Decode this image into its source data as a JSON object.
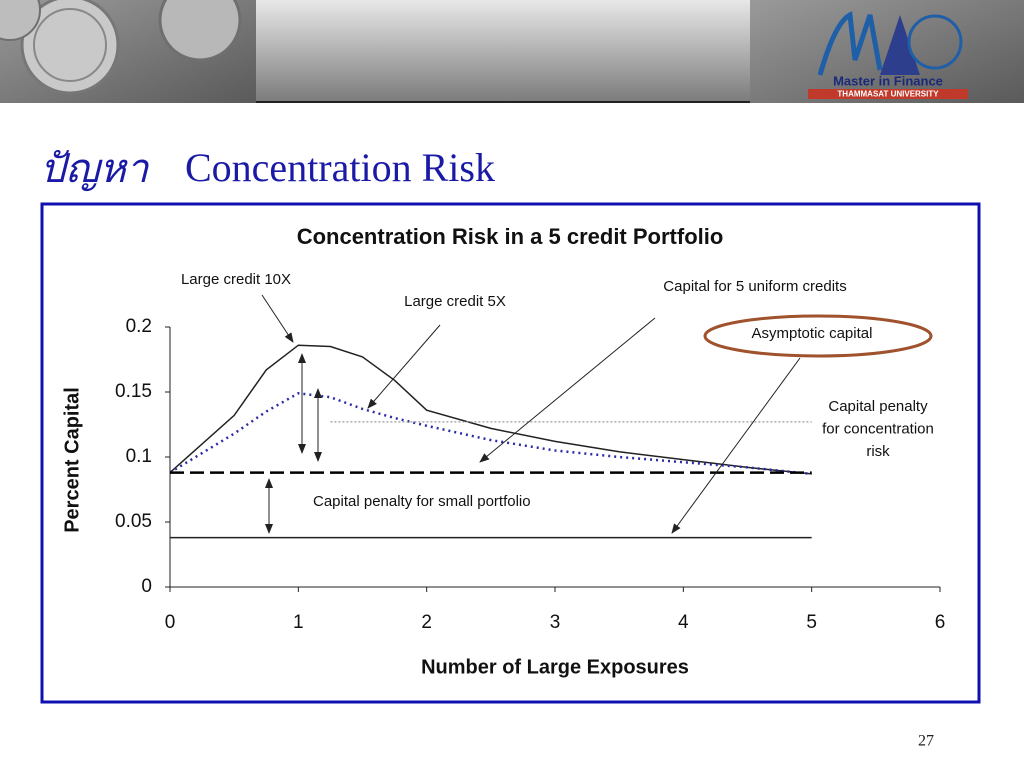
{
  "header": {
    "logo_text": "Master in Finance",
    "logo_subtext": "THAMMASAT UNIVERSITY"
  },
  "slide_title_thai": "ปัญหา",
  "slide_title": "Concentration Risk",
  "page_number": "27",
  "chart_data": {
    "type": "line",
    "title": "Concentration Risk in a 5 credit Portfolio",
    "x_label": "Number of Large Exposures",
    "y_label": "Percent Capital",
    "xlim": [
      0,
      6
    ],
    "xticks": [
      0,
      1,
      2,
      3,
      4,
      5,
      6
    ],
    "ylim": [
      0,
      0.2
    ],
    "yticks": [
      0,
      0.05,
      0.1,
      0.15,
      0.2
    ],
    "series": [
      {
        "name": "Large credit 10X",
        "color": "#222222",
        "style": "solid",
        "x": [
          0,
          0.5,
          0.75,
          1,
          1.25,
          1.5,
          1.75,
          2,
          2.5,
          3,
          3.5,
          4,
          4.5,
          5
        ],
        "values": [
          0.088,
          0.132,
          0.167,
          0.186,
          0.185,
          0.177,
          0.159,
          0.136,
          0.122,
          0.112,
          0.104,
          0.098,
          0.092,
          0.087
        ]
      },
      {
        "name": "Large credit 5X",
        "color": "#2b2ba8",
        "style": "dotted",
        "x": [
          0,
          0.5,
          0.75,
          1,
          1.25,
          1.5,
          1.75,
          2,
          2.5,
          3,
          3.5,
          4,
          4.5,
          5
        ],
        "values": [
          0.088,
          0.118,
          0.135,
          0.149,
          0.146,
          0.137,
          0.13,
          0.124,
          0.113,
          0.105,
          0.1,
          0.096,
          0.092,
          0.087
        ]
      },
      {
        "name": "Capital for 5 uniform credits",
        "color": "#000000",
        "style": "dashed",
        "x": [
          0,
          5
        ],
        "values": [
          0.088,
          0.088
        ]
      },
      {
        "name": "Asymptotic capital",
        "color": "#222222",
        "style": "solid",
        "x": [
          0,
          5
        ],
        "values": [
          0.038,
          0.038
        ]
      },
      {
        "name": "Capital penalty for concentration risk",
        "color": "#999999",
        "style": "fine",
        "x": [
          1.25,
          5
        ],
        "values": [
          0.127,
          0.127
        ]
      }
    ],
    "annotations": [
      {
        "lines": [
          "Capital penalty",
          "for concentration",
          "risk"
        ]
      },
      {
        "lines": [
          "Capital penalty for small portfolio"
        ]
      }
    ]
  }
}
